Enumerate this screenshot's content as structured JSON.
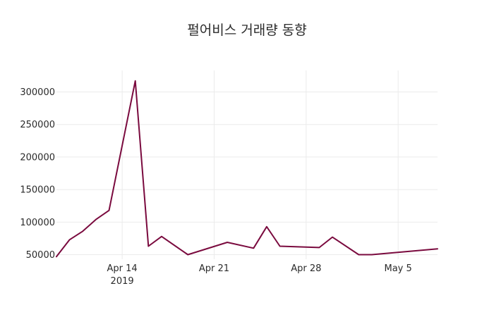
{
  "chart_data": {
    "type": "line",
    "title": "펄어비스 거래량 동향",
    "xlabel": "",
    "ylabel": "",
    "x_type": "date",
    "xlim": [
      "2019-04-09",
      "2019-05-08"
    ],
    "ylim": [
      43000,
      333000
    ],
    "grid": true,
    "legend": "none",
    "y_ticks": [
      50000,
      100000,
      150000,
      200000,
      250000,
      300000
    ],
    "y_tick_labels": [
      "50000",
      "100000",
      "150000",
      "200000",
      "250000",
      "300000"
    ],
    "x_ticks": [
      "2019-04-14",
      "2019-04-21",
      "2019-04-28",
      "2019-05-05"
    ],
    "x_tick_labels": [
      "Apr 14",
      "Apr 21",
      "Apr 28",
      "May 5"
    ],
    "x_tick_sublabels": [
      "2019",
      "",
      "",
      ""
    ],
    "series": [
      {
        "color": "#7a0a3e",
        "points": [
          {
            "x": "2019-04-09",
            "y": 47000
          },
          {
            "x": "2019-04-10",
            "y": 73000
          },
          {
            "x": "2019-04-11",
            "y": 86000
          },
          {
            "x": "2019-04-12",
            "y": 104000
          },
          {
            "x": "2019-04-13",
            "y": 118000
          },
          {
            "x": "2019-04-15",
            "y": 317000
          },
          {
            "x": "2019-04-16",
            "y": 63000
          },
          {
            "x": "2019-04-17",
            "y": 78000
          },
          {
            "x": "2019-04-19",
            "y": 50000
          },
          {
            "x": "2019-04-22",
            "y": 69000
          },
          {
            "x": "2019-04-24",
            "y": 60000
          },
          {
            "x": "2019-04-25",
            "y": 93000
          },
          {
            "x": "2019-04-26",
            "y": 63000
          },
          {
            "x": "2019-04-29",
            "y": 61000
          },
          {
            "x": "2019-04-30",
            "y": 77000
          },
          {
            "x": "2019-05-02",
            "y": 50000
          },
          {
            "x": "2019-05-03",
            "y": 50000
          },
          {
            "x": "2019-05-08",
            "y": 59000
          }
        ]
      }
    ]
  }
}
